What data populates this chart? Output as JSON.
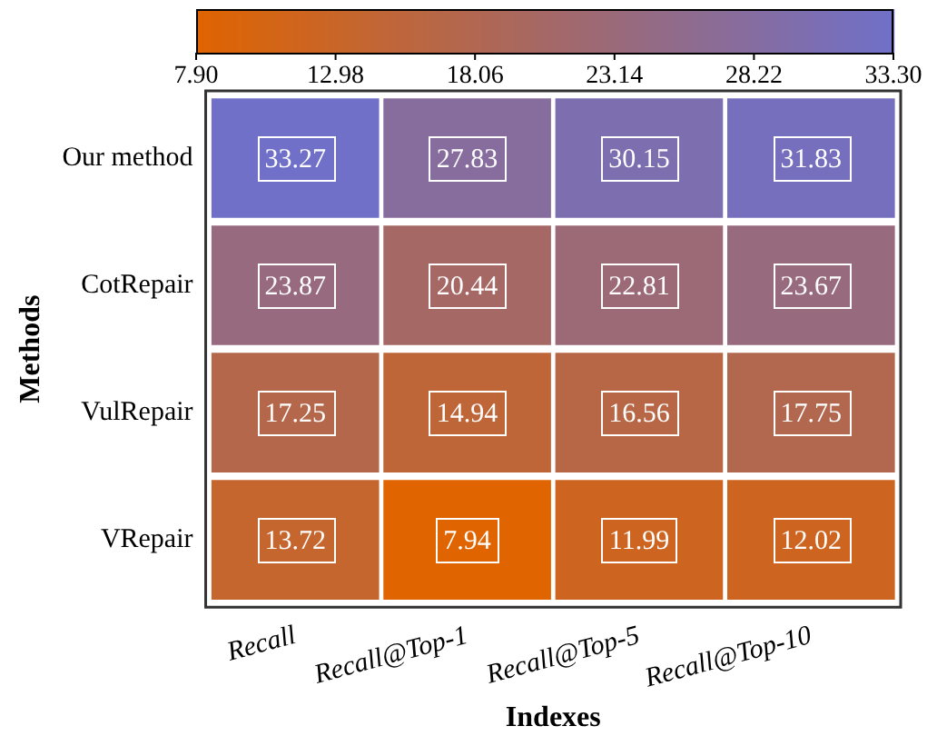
{
  "chart_data": {
    "type": "heatmap",
    "xlabel": "Indexes",
    "ylabel": "Methods",
    "categories": [
      "Recall",
      "Recall@Top-1",
      "Recall@Top-5",
      "Recall@Top-10"
    ],
    "y_categories": [
      "Our method",
      "CotRepair",
      "VulRepair",
      "VRepair"
    ],
    "cells": [
      [
        33.27,
        27.83,
        30.15,
        31.83
      ],
      [
        23.87,
        20.44,
        22.81,
        23.67
      ],
      [
        17.25,
        14.94,
        16.56,
        17.75
      ],
      [
        13.72,
        7.94,
        11.99,
        12.02
      ]
    ],
    "data_labels": true,
    "clim": [
      7.9,
      33.3
    ],
    "cticks": [
      {
        "value": 7.9,
        "label": "7.90"
      },
      12.98,
      18.06,
      23.14,
      28.22,
      {
        "value": 33.3,
        "label": "33.30"
      }
    ]
  }
}
